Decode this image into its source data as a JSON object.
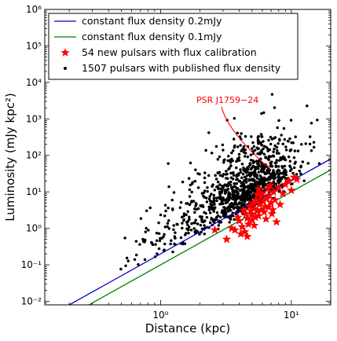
{
  "chart_data": {
    "type": "scatter",
    "xlabel": "Distance (kpc)",
    "ylabel": "Luminosity (mJy kpc²)",
    "xscale": "log",
    "yscale": "log",
    "xlim": [
      0.13,
      20
    ],
    "ylim": [
      0.008,
      1000000
    ],
    "x_ticks": [
      {
        "value": 1,
        "label": "10⁰"
      },
      {
        "value": 10,
        "label": "10¹"
      }
    ],
    "y_ticks": [
      {
        "value": 0.01,
        "label": "10⁻²"
      },
      {
        "value": 0.1,
        "label": "10⁻¹"
      },
      {
        "value": 1,
        "label": "10⁰"
      },
      {
        "value": 10,
        "label": "10¹"
      },
      {
        "value": 100,
        "label": "10²"
      },
      {
        "value": 1000,
        "label": "10³"
      },
      {
        "value": 10000,
        "label": "10⁴"
      },
      {
        "value": 100000,
        "label": "10⁵"
      },
      {
        "value": 1000000,
        "label": "10⁶"
      }
    ],
    "grid": false,
    "legend_position": "top-left",
    "series": [
      {
        "name": "constant flux density 0.2mJy",
        "kind": "line",
        "color": "#0000cc",
        "flux_mjy": 0.2
      },
      {
        "name": "constant flux density 0.1mJy",
        "kind": "line",
        "color": "#008000",
        "flux_mjy": 0.1
      },
      {
        "name": "54 new pulsars with flux calibration",
        "kind": "scatter",
        "marker": "star",
        "color": "#ff0000",
        "count": 54,
        "points": [
          [
            3.2,
            0.5
          ],
          [
            3.7,
            0.9
          ],
          [
            4.0,
            1.6
          ],
          [
            4.2,
            1.1
          ],
          [
            4.4,
            0.8
          ],
          [
            4.5,
            2.5
          ],
          [
            4.6,
            1.9
          ],
          [
            4.7,
            1.3
          ],
          [
            4.8,
            4.0
          ],
          [
            4.9,
            3.0
          ],
          [
            5.0,
            1.7
          ],
          [
            5.0,
            2.4
          ],
          [
            5.1,
            5.0
          ],
          [
            5.2,
            3.5
          ],
          [
            5.3,
            2.0
          ],
          [
            5.4,
            6.0
          ],
          [
            5.5,
            3.0
          ],
          [
            5.6,
            2.2
          ],
          [
            5.7,
            4.5
          ],
          [
            5.8,
            7.5
          ],
          [
            5.9,
            3.2
          ],
          [
            6.0,
            9.0
          ],
          [
            6.1,
            5.5
          ],
          [
            6.2,
            2.8
          ],
          [
            6.3,
            4.0
          ],
          [
            6.5,
            6.5
          ],
          [
            6.6,
            12.0
          ],
          [
            6.7,
            3.8
          ],
          [
            6.8,
            8.0
          ],
          [
            7.0,
            5.0
          ],
          [
            7.1,
            2.5
          ],
          [
            7.3,
            10.0
          ],
          [
            7.5,
            6.0
          ],
          [
            7.7,
            1.5
          ],
          [
            8.0,
            13.0
          ],
          [
            8.2,
            4.5
          ],
          [
            8.6,
            9.0
          ],
          [
            9.0,
            16.0
          ],
          [
            9.5,
            20.0
          ],
          [
            10.0,
            11.0
          ],
          [
            10.5,
            25.0
          ],
          [
            11.0,
            22.0
          ],
          [
            3.5,
            1.0
          ],
          [
            4.1,
            0.7
          ],
          [
            2.6,
            0.9
          ],
          [
            5.2,
            1.2
          ],
          [
            6.4,
            1.8
          ],
          [
            7.2,
            3.2
          ],
          [
            3.9,
            2.0
          ],
          [
            4.3,
            3.1
          ],
          [
            5.6,
            12.0
          ],
          [
            6.9,
            15.0
          ],
          [
            4.6,
            0.6
          ],
          [
            5.5,
            8.5
          ]
        ]
      },
      {
        "name": "1507 pulsars with published flux density",
        "kind": "scatter",
        "marker": "dot",
        "color": "#000000",
        "count": 1507,
        "rendered_sample": 1100
      }
    ],
    "annotations": [
      {
        "text": "PSR J1759−24",
        "color": "#ff0000",
        "points_to": [
          7.0,
          40
        ]
      }
    ]
  }
}
